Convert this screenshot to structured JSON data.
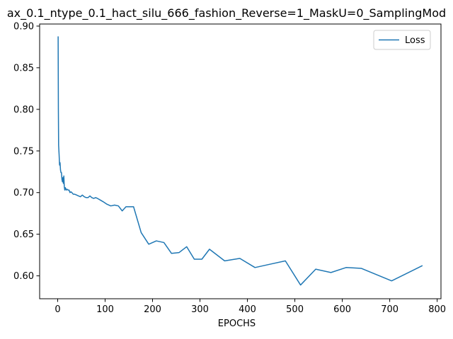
{
  "chart_data": {
    "type": "line",
    "title": "ax_0.1_ntype_0.1_hact_silu_666_fashion_Reverse=1_MaskU=0_SamplingMod",
    "xlabel": "EPOCHS",
    "ylabel": "",
    "xlim": [
      -38,
      808
    ],
    "ylim": [
      0.5725,
      0.9025
    ],
    "xticks": [
      0,
      100,
      200,
      300,
      400,
      500,
      600,
      700,
      800
    ],
    "yticks": [
      0.6,
      0.65,
      0.7,
      0.75,
      0.8,
      0.85,
      0.9
    ],
    "ytick_labels": [
      "0.60",
      "0.65",
      "0.70",
      "0.75",
      "0.80",
      "0.85",
      "0.90"
    ],
    "grid": false,
    "legend_position": "top-right",
    "series": [
      {
        "name": "Loss",
        "color": "#1f77b4",
        "x": [
          1,
          1.5,
          2,
          3,
          4,
          5,
          6,
          7,
          8,
          9,
          10,
          11,
          12,
          13,
          14,
          15,
          16,
          17,
          18,
          20,
          22,
          24,
          26,
          28,
          30,
          33,
          36,
          40,
          44,
          48,
          52,
          56,
          60,
          64,
          68,
          72,
          76,
          80,
          84,
          90,
          96,
          104,
          112,
          120,
          128,
          136,
          144,
          152,
          160,
          176,
          192,
          208,
          224,
          240,
          256,
          272,
          288,
          304,
          320,
          352,
          384,
          416,
          448,
          480,
          512,
          544,
          576,
          608,
          640,
          704,
          768
        ],
        "y": [
          0.887,
          0.8,
          0.757,
          0.746,
          0.733,
          0.736,
          0.727,
          0.724,
          0.724,
          0.716,
          0.713,
          0.718,
          0.711,
          0.72,
          0.707,
          0.703,
          0.706,
          0.705,
          0.703,
          0.704,
          0.703,
          0.703,
          0.7,
          0.701,
          0.7,
          0.698,
          0.698,
          0.697,
          0.696,
          0.695,
          0.697,
          0.695,
          0.694,
          0.694,
          0.696,
          0.694,
          0.693,
          0.694,
          0.693,
          0.691,
          0.689,
          0.686,
          0.684,
          0.685,
          0.684,
          0.678,
          0.683,
          0.683,
          0.683,
          0.652,
          0.638,
          0.642,
          0.64,
          0.627,
          0.628,
          0.635,
          0.62,
          0.62,
          0.632,
          0.618,
          0.621,
          0.61,
          0.614,
          0.618,
          0.589,
          0.608,
          0.604,
          0.61,
          0.609,
          0.594,
          0.612
        ]
      }
    ]
  }
}
